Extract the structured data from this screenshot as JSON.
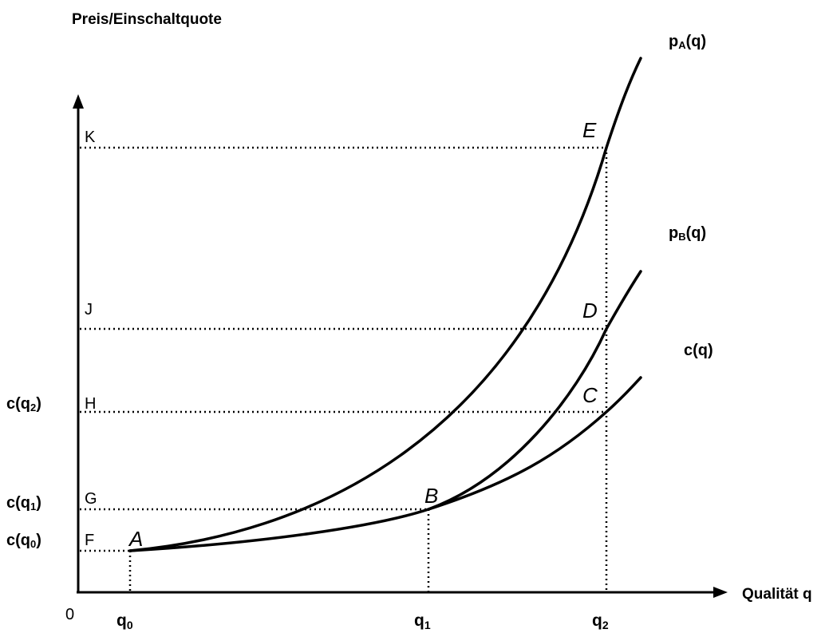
{
  "axes": {
    "y_label": "Preis/Einschaltquote",
    "x_label": "Qualität q",
    "origin": "0"
  },
  "curves": {
    "pA": {
      "base": "p",
      "sub": "A",
      "tail": "(q)"
    },
    "pB": {
      "base": "p",
      "sub": "B",
      "tail": "(q)"
    },
    "c": {
      "label": "c(q)"
    }
  },
  "points": {
    "A": "A",
    "B": "B",
    "C": "C",
    "D": "D",
    "E": "E"
  },
  "levels": {
    "F": "F",
    "G": "G",
    "H": "H",
    "J": "J",
    "K": "K"
  },
  "cost_labels": {
    "q0": {
      "base": "c(q",
      "sub": "0",
      "tail": ")"
    },
    "q1": {
      "base": "c(q",
      "sub": "1",
      "tail": ")"
    },
    "q2": {
      "base": "c(q",
      "sub": "2",
      "tail": ")"
    }
  },
  "x_ticks": {
    "q0": {
      "base": "q",
      "sub": "0"
    },
    "q1": {
      "base": "q",
      "sub": "1"
    },
    "q2": {
      "base": "q",
      "sub": "2"
    }
  }
}
